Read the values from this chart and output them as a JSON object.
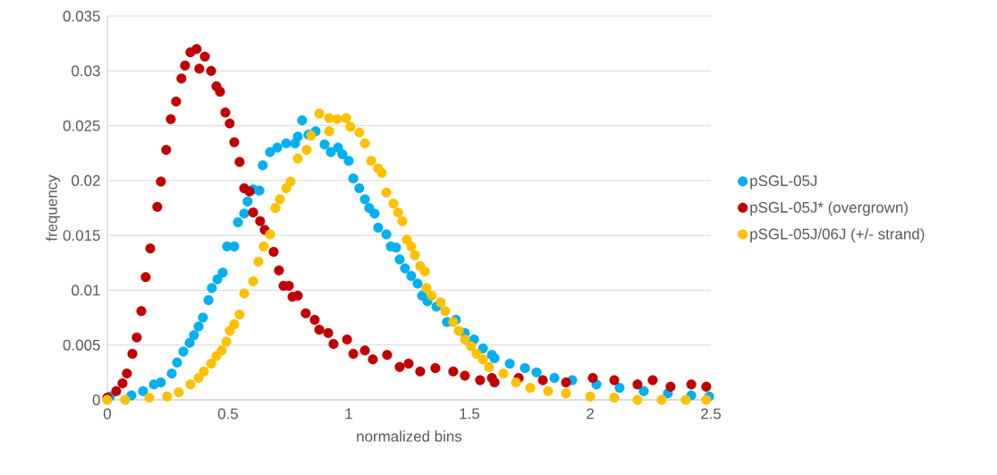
{
  "chart_data": {
    "type": "scatter",
    "xlabel": "normalized bins",
    "ylabel": "frequency",
    "xlim": [
      0,
      2.5
    ],
    "xticks": [
      0,
      0.5,
      1,
      1.5,
      2,
      2.5
    ],
    "ylim": [
      0,
      0.035
    ],
    "yticks": [
      0,
      0.005,
      0.01,
      0.015,
      0.02,
      0.025,
      0.03,
      0.035
    ],
    "grid": "y",
    "legend": "right",
    "marker": "circle",
    "series": [
      {
        "name": "pSGL-05J",
        "color": "#00b0f0",
        "x": [
          0.011,
          0.1,
          0.148,
          0.193,
          0.222,
          0.267,
          0.289,
          0.315,
          0.341,
          0.359,
          0.378,
          0.396,
          0.419,
          0.433,
          0.456,
          0.478,
          0.496,
          0.526,
          0.541,
          0.567,
          0.581,
          0.604,
          0.63,
          0.644,
          0.674,
          0.704,
          0.741,
          0.778,
          0.789,
          0.807,
          0.833,
          0.863,
          0.9,
          0.926,
          0.956,
          0.974,
          1.0,
          1.019,
          1.044,
          1.067,
          1.085,
          1.107,
          1.122,
          1.156,
          1.174,
          1.196,
          1.211,
          1.233,
          1.259,
          1.285,
          1.304,
          1.326,
          1.363,
          1.407,
          1.444,
          1.481,
          1.519,
          1.556,
          1.593,
          1.604,
          1.667,
          1.73,
          1.778,
          1.852,
          1.926,
          2.026,
          2.122,
          2.222,
          2.322,
          2.419,
          2.493
        ],
        "values": [
          0.0003,
          0.0004,
          0.0008,
          0.0014,
          0.0016,
          0.0024,
          0.0034,
          0.0044,
          0.0052,
          0.0059,
          0.0067,
          0.0075,
          0.0091,
          0.0102,
          0.011,
          0.0116,
          0.014,
          0.014,
          0.0162,
          0.017,
          0.0181,
          0.0192,
          0.0191,
          0.0214,
          0.0226,
          0.023,
          0.0234,
          0.0234,
          0.024,
          0.0255,
          0.0242,
          0.0245,
          0.0233,
          0.0226,
          0.023,
          0.0224,
          0.0218,
          0.0202,
          0.0193,
          0.0183,
          0.0175,
          0.017,
          0.0157,
          0.0151,
          0.014,
          0.0139,
          0.0128,
          0.012,
          0.0113,
          0.0106,
          0.0095,
          0.009,
          0.0085,
          0.0071,
          0.0073,
          0.0061,
          0.0055,
          0.0047,
          0.0041,
          0.0038,
          0.0033,
          0.0029,
          0.0025,
          0.002,
          0.0018,
          0.0014,
          0.0011,
          0.0008,
          0.0006,
          0.0004,
          0.0003
        ]
      },
      {
        "name": "pSGL-05J* (overgrown)",
        "color": "#c00000",
        "x": [
          0.0,
          0.037,
          0.063,
          0.081,
          0.104,
          0.122,
          0.141,
          0.159,
          0.178,
          0.207,
          0.222,
          0.244,
          0.263,
          0.285,
          0.307,
          0.322,
          0.344,
          0.37,
          0.381,
          0.404,
          0.43,
          0.452,
          0.467,
          0.489,
          0.507,
          0.526,
          0.548,
          0.567,
          0.589,
          0.604,
          0.633,
          0.652,
          0.689,
          0.711,
          0.73,
          0.752,
          0.767,
          0.789,
          0.822,
          0.859,
          0.878,
          0.915,
          0.937,
          0.993,
          1.019,
          1.067,
          1.1,
          1.159,
          1.211,
          1.248,
          1.296,
          1.359,
          1.433,
          1.481,
          1.544,
          1.593,
          1.604,
          1.704,
          1.804,
          1.9,
          2.011,
          2.1,
          2.196,
          2.259,
          2.333,
          2.419,
          2.481
        ],
        "values": [
          0.0002,
          0.0008,
          0.0015,
          0.0024,
          0.0042,
          0.0057,
          0.0081,
          0.0112,
          0.0138,
          0.0176,
          0.0199,
          0.0228,
          0.0256,
          0.0272,
          0.0293,
          0.0305,
          0.0317,
          0.032,
          0.0302,
          0.0313,
          0.03,
          0.0286,
          0.0281,
          0.0262,
          0.0252,
          0.0235,
          0.0217,
          0.0193,
          0.019,
          0.0171,
          0.0163,
          0.0155,
          0.0135,
          0.0118,
          0.0104,
          0.0104,
          0.0094,
          0.0095,
          0.0079,
          0.0073,
          0.0064,
          0.0061,
          0.0051,
          0.0055,
          0.0042,
          0.0045,
          0.0037,
          0.0041,
          0.003,
          0.0033,
          0.0026,
          0.0029,
          0.0026,
          0.0022,
          0.0018,
          0.002,
          0.0016,
          0.002,
          0.0018,
          0.0016,
          0.002,
          0.0018,
          0.0014,
          0.0018,
          0.0012,
          0.0014,
          0.0012
        ]
      },
      {
        "name": "pSGL-05J/06J (+/- strand)",
        "color": "#ffc000",
        "x": [
          0.0,
          0.074,
          0.174,
          0.248,
          0.296,
          0.344,
          0.378,
          0.4,
          0.43,
          0.452,
          0.474,
          0.493,
          0.507,
          0.526,
          0.548,
          0.567,
          0.604,
          0.626,
          0.648,
          0.674,
          0.696,
          0.715,
          0.741,
          0.759,
          0.789,
          0.826,
          0.844,
          0.878,
          0.919,
          0.919,
          0.952,
          0.989,
          1.007,
          1.044,
          1.067,
          1.093,
          1.122,
          1.137,
          1.156,
          1.185,
          1.204,
          1.222,
          1.241,
          1.259,
          1.274,
          1.296,
          1.315,
          1.322,
          1.344,
          1.381,
          1.4,
          1.433,
          1.456,
          1.481,
          1.507,
          1.53,
          1.556,
          1.581,
          1.641,
          1.693,
          1.752,
          1.826,
          1.9,
          2.0,
          2.1,
          2.196,
          2.296,
          2.396,
          2.481
        ],
        "values": [
          0.0,
          0.0,
          0.0002,
          0.0003,
          0.0007,
          0.0014,
          0.002,
          0.0026,
          0.0033,
          0.004,
          0.0045,
          0.0053,
          0.0063,
          0.0069,
          0.0078,
          0.0097,
          0.0108,
          0.0126,
          0.014,
          0.0151,
          0.0175,
          0.0183,
          0.0193,
          0.0199,
          0.022,
          0.0228,
          0.0241,
          0.0261,
          0.0257,
          0.0245,
          0.0256,
          0.0257,
          0.0249,
          0.0244,
          0.0234,
          0.0218,
          0.0211,
          0.0207,
          0.0189,
          0.0179,
          0.0171,
          0.0163,
          0.0146,
          0.014,
          0.0132,
          0.0122,
          0.0117,
          0.0102,
          0.0095,
          0.0089,
          0.0081,
          0.0071,
          0.0063,
          0.0055,
          0.0049,
          0.0042,
          0.0037,
          0.003,
          0.0024,
          0.0016,
          0.0011,
          0.0008,
          0.0006,
          0.0003,
          0.0002,
          0.0,
          0.0,
          0.0,
          0.0
        ]
      }
    ]
  }
}
